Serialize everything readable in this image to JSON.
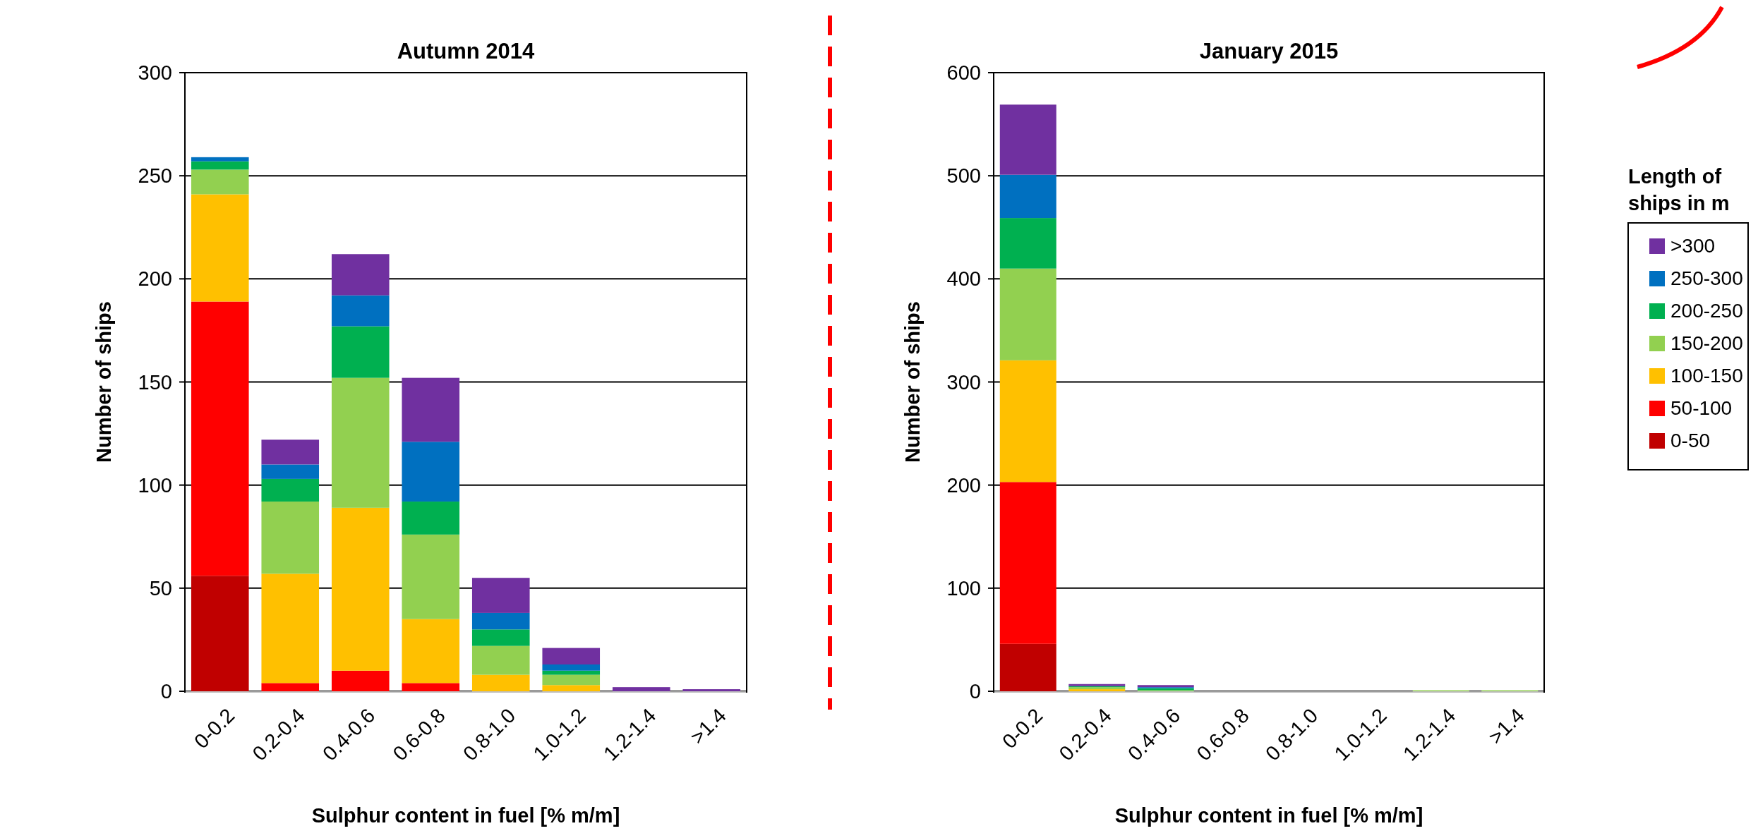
{
  "chart_data": [
    {
      "type": "bar",
      "title": "Autumn 2014",
      "xlabel": "Sulphur content in fuel [% m/m]",
      "ylabel": "Number of ships",
      "categories": [
        "0-0.2",
        "0.2-0.4",
        "0.4-0.6",
        "0.6-0.8",
        "0.8-1.0",
        "1.0-1.2",
        "1.2-1.4",
        ">1.4"
      ],
      "stacked": true,
      "ylim": [
        0,
        300
      ],
      "yticks": [
        0,
        50,
        100,
        150,
        200,
        250,
        300
      ],
      "grid": "y",
      "legend": false,
      "series": [
        {
          "color": "#c00000",
          "values": [
            56,
            0,
            0,
            0,
            0,
            0,
            0,
            0
          ]
        },
        {
          "color": "#ff0000",
          "values": [
            133,
            4,
            10,
            4,
            0,
            0,
            0,
            0
          ]
        },
        {
          "color": "#ffc000",
          "values": [
            52,
            53,
            79,
            31,
            8,
            3,
            0,
            0
          ]
        },
        {
          "color": "#92d050",
          "values": [
            12,
            35,
            63,
            41,
            14,
            5,
            0,
            0
          ]
        },
        {
          "color": "#00b050",
          "values": [
            4,
            11,
            25,
            16,
            8,
            2,
            0,
            0
          ]
        },
        {
          "color": "#0070c0",
          "values": [
            2,
            7,
            15,
            29,
            8,
            3,
            0,
            0
          ]
        },
        {
          "color": "#7030a0",
          "values": [
            0,
            12,
            20,
            31,
            17,
            8,
            2,
            1
          ]
        }
      ]
    },
    {
      "type": "bar",
      "title": "January 2015",
      "xlabel": "Sulphur content in fuel [% m/m]",
      "ylabel": "Number of ships",
      "categories": [
        "0-0.2",
        "0.2-0.4",
        "0.4-0.6",
        "0.6-0.8",
        "0.8-1.0",
        "1.0-1.2",
        "1.2-1.4",
        ">1.4"
      ],
      "stacked": true,
      "ylim": [
        0,
        600
      ],
      "yticks": [
        0,
        100,
        200,
        300,
        400,
        500,
        600
      ],
      "grid": "y",
      "legend": "right",
      "legend_title": "Length of ships in m",
      "series": [
        {
          "name": "0-50",
          "color": "#c00000",
          "values": [
            46,
            0,
            0,
            0,
            0,
            0,
            0,
            0
          ]
        },
        {
          "name": "50-100",
          "color": "#ff0000",
          "values": [
            157,
            0,
            0,
            0,
            0,
            0,
            0,
            0
          ]
        },
        {
          "name": "100-150",
          "color": "#ffc000",
          "values": [
            118,
            2,
            0,
            0,
            0,
            0,
            0,
            0
          ]
        },
        {
          "name": "150-200",
          "color": "#92d050",
          "values": [
            89,
            2,
            1,
            0,
            0,
            0,
            1,
            1
          ]
        },
        {
          "name": "200-250",
          "color": "#00b050",
          "values": [
            49,
            1,
            2,
            0,
            0,
            0,
            0,
            0
          ]
        },
        {
          "name": "250-300",
          "color": "#0070c0",
          "values": [
            42,
            0,
            1,
            0,
            0,
            0,
            0,
            0
          ]
        },
        {
          "name": ">300",
          "color": "#7030a0",
          "values": [
            68,
            2,
            2,
            0,
            0,
            0,
            0,
            0
          ]
        }
      ]
    }
  ]
}
